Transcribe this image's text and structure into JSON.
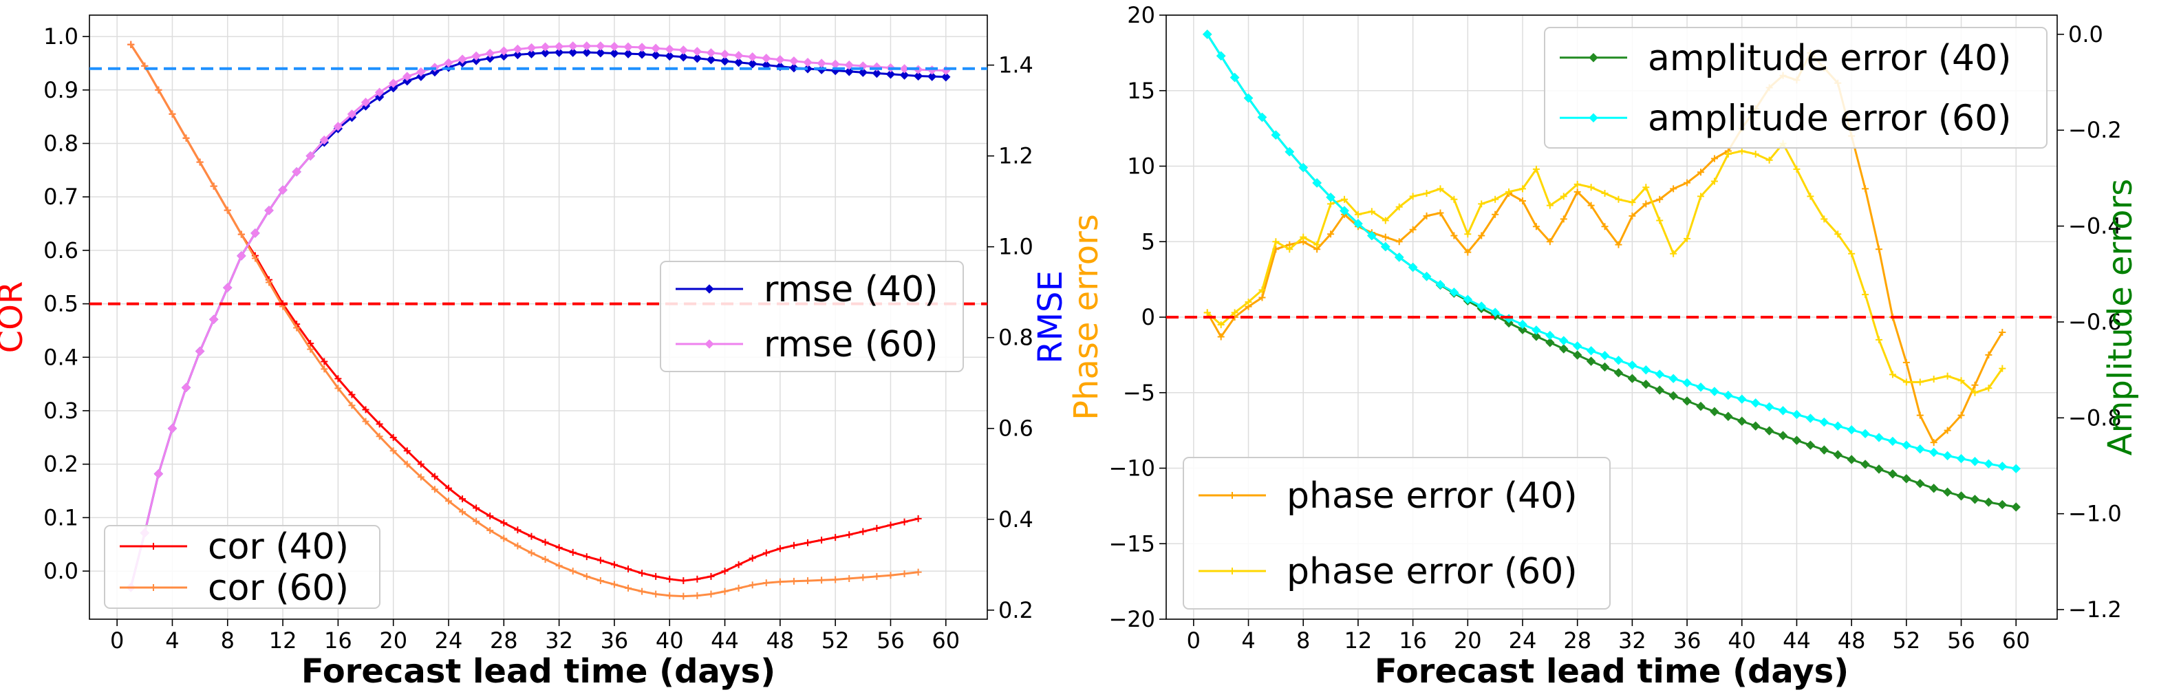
{
  "chart_data": [
    {
      "type": "line",
      "xlabel": "Forecast lead time (days)",
      "ylabel_left": "COR",
      "ylabel_right": "RMSE",
      "xlim": [
        -2,
        63
      ],
      "ylim_left": [
        -0.09,
        1.04
      ],
      "ylim_right": [
        0.18,
        1.51
      ],
      "xticks": [
        0,
        4,
        8,
        12,
        16,
        20,
        24,
        28,
        32,
        36,
        40,
        44,
        48,
        52,
        56,
        60
      ],
      "yticks_left": [
        0.0,
        0.1,
        0.2,
        0.3,
        0.4,
        0.5,
        0.6,
        0.7,
        0.8,
        0.9,
        1.0
      ],
      "yticks_right": [
        0.2,
        0.4,
        0.6,
        0.8,
        1.0,
        1.2,
        1.4
      ],
      "grid": true,
      "hlines": [
        {
          "axis": "left",
          "y": 0.5,
          "color": "#ff0000",
          "style": "dashed"
        },
        {
          "axis": "left",
          "y": 0.94,
          "color": "#1e90ff",
          "style": "dashed"
        }
      ],
      "series": [
        {
          "name": "cor (40)",
          "axis": "left",
          "color": "#ff0000",
          "marker": "plus",
          "x_start": 1,
          "values": [
            0.985,
            0.945,
            0.9,
            0.855,
            0.81,
            0.765,
            0.72,
            0.675,
            0.63,
            0.59,
            0.545,
            0.5,
            0.462,
            0.426,
            0.392,
            0.36,
            0.33,
            0.302,
            0.275,
            0.25,
            0.225,
            0.2,
            0.177,
            0.155,
            0.135,
            0.118,
            0.103,
            0.09,
            0.077,
            0.065,
            0.054,
            0.044,
            0.035,
            0.027,
            0.02,
            0.012,
            0.004,
            -0.004,
            -0.01,
            -0.015,
            -0.018,
            -0.015,
            -0.01,
            0.0,
            0.012,
            0.024,
            0.034,
            0.042,
            0.048,
            0.053,
            0.058,
            0.063,
            0.068,
            0.074,
            0.08,
            0.086,
            0.092,
            0.098
          ]
        },
        {
          "name": "cor (60)",
          "axis": "left",
          "color": "#ff8c42",
          "marker": "plus",
          "x_start": 1,
          "values": [
            0.985,
            0.945,
            0.9,
            0.855,
            0.81,
            0.765,
            0.72,
            0.675,
            0.63,
            0.585,
            0.54,
            0.495,
            0.455,
            0.415,
            0.378,
            0.342,
            0.31,
            0.28,
            0.252,
            0.225,
            0.2,
            0.176,
            0.153,
            0.131,
            0.111,
            0.093,
            0.076,
            0.061,
            0.047,
            0.034,
            0.022,
            0.01,
            0.0,
            -0.01,
            -0.018,
            -0.025,
            -0.032,
            -0.038,
            -0.043,
            -0.046,
            -0.047,
            -0.046,
            -0.043,
            -0.038,
            -0.032,
            -0.026,
            -0.022,
            -0.02,
            -0.019,
            -0.018,
            -0.017,
            -0.016,
            -0.014,
            -0.012,
            -0.01,
            -0.008,
            -0.005,
            -0.002
          ]
        },
        {
          "name": "rmse (40)",
          "axis": "right",
          "color": "#0000cd",
          "marker": "diamond",
          "x_start": 1,
          "values": [
            0.25,
            0.37,
            0.5,
            0.6,
            0.69,
            0.77,
            0.84,
            0.91,
            0.98,
            1.03,
            1.08,
            1.125,
            1.165,
            1.2,
            1.23,
            1.26,
            1.285,
            1.31,
            1.33,
            1.35,
            1.365,
            1.375,
            1.385,
            1.395,
            1.405,
            1.41,
            1.415,
            1.42,
            1.423,
            1.425,
            1.427,
            1.428,
            1.428,
            1.428,
            1.427,
            1.426,
            1.425,
            1.424,
            1.422,
            1.42,
            1.418,
            1.415,
            1.412,
            1.409,
            1.406,
            1.403,
            1.4,
            1.397,
            1.394,
            1.392,
            1.39,
            1.388,
            1.386,
            1.384,
            1.382,
            1.38,
            1.378,
            1.376,
            1.375,
            1.374
          ]
        },
        {
          "name": "rmse (60)",
          "axis": "right",
          "color": "#ee82ee",
          "marker": "diamond",
          "x_start": 1,
          "values": [
            0.25,
            0.37,
            0.5,
            0.6,
            0.69,
            0.77,
            0.84,
            0.91,
            0.98,
            1.03,
            1.08,
            1.125,
            1.165,
            1.2,
            1.235,
            1.265,
            1.292,
            1.318,
            1.34,
            1.36,
            1.375,
            1.385,
            1.395,
            1.405,
            1.413,
            1.42,
            1.426,
            1.431,
            1.435,
            1.438,
            1.44,
            1.441,
            1.442,
            1.442,
            1.442,
            1.441,
            1.44,
            1.439,
            1.437,
            1.435,
            1.433,
            1.43,
            1.427,
            1.424,
            1.421,
            1.418,
            1.415,
            1.412,
            1.409,
            1.406,
            1.404,
            1.402,
            1.4,
            1.398,
            1.396,
            1.394,
            1.392,
            1.39,
            1.389,
            1.388
          ]
        }
      ],
      "legends": [
        {
          "position": "lower-left",
          "entries": [
            "cor (40)",
            "cor (60)"
          ]
        },
        {
          "position": "center-right",
          "entries": [
            "rmse (40)",
            "rmse (60)"
          ]
        }
      ]
    },
    {
      "type": "line",
      "xlabel": "Forecast lead time (days)",
      "ylabel_left": "Phase errors",
      "ylabel_right": "Amplitude errors",
      "xlim": [
        -2,
        63
      ],
      "ylim_left": [
        -20,
        20
      ],
      "ylim_right": [
        -1.22,
        0.04
      ],
      "xticks": [
        0,
        4,
        8,
        12,
        16,
        20,
        24,
        28,
        32,
        36,
        40,
        44,
        48,
        52,
        56,
        60
      ],
      "yticks_left": [
        -20,
        -15,
        -10,
        -5,
        0,
        5,
        10,
        15,
        20
      ],
      "yticks_right": [
        -1.2,
        -1.0,
        -0.8,
        -0.6,
        -0.4,
        -0.2,
        0.0
      ],
      "grid": true,
      "hlines": [
        {
          "axis": "left",
          "y": 0,
          "color": "#ff0000",
          "style": "dashed"
        }
      ],
      "series": [
        {
          "name": "phase error (40)",
          "axis": "left",
          "color": "#ffa500",
          "marker": "plus",
          "x_start": 1,
          "values": [
            0.3,
            -1.3,
            0.0,
            0.7,
            1.3,
            4.5,
            4.8,
            5.0,
            4.5,
            5.5,
            6.8,
            6.0,
            5.6,
            5.3,
            5.0,
            5.8,
            6.7,
            6.9,
            5.4,
            4.3,
            5.4,
            6.8,
            8.2,
            7.7,
            6.0,
            5.0,
            6.5,
            8.3,
            7.4,
            6.0,
            4.8,
            6.7,
            7.5,
            7.8,
            8.5,
            8.9,
            9.6,
            10.5,
            11.0,
            12.5,
            13.8,
            15.2,
            16.0,
            15.7,
            17.5,
            16.5,
            15.5,
            12.0,
            8.5,
            4.5,
            0.0,
            -3.0,
            -6.5,
            -8.3,
            -7.5,
            -6.5,
            -4.5,
            -2.5,
            -1.0
          ]
        },
        {
          "name": "phase error (60)",
          "axis": "left",
          "color": "#ffd700",
          "marker": "plus",
          "x_start": 1,
          "values": [
            0.3,
            -0.5,
            0.3,
            1.0,
            1.8,
            5.0,
            4.5,
            5.3,
            4.8,
            7.5,
            7.8,
            6.8,
            7.0,
            6.4,
            7.3,
            8.0,
            8.2,
            8.5,
            7.8,
            5.5,
            7.5,
            7.8,
            8.3,
            8.5,
            9.8,
            7.4,
            8.0,
            8.8,
            8.6,
            8.2,
            7.8,
            7.6,
            8.6,
            6.4,
            4.2,
            5.2,
            8.0,
            9.0,
            10.8,
            11.0,
            10.8,
            10.4,
            11.5,
            9.8,
            8.0,
            6.5,
            5.5,
            4.2,
            1.5,
            -1.5,
            -3.8,
            -4.3,
            -4.3,
            -4.1,
            -3.9,
            -4.2,
            -5.0,
            -4.7,
            -3.4
          ]
        },
        {
          "name": "amplitude error (40)",
          "axis": "right",
          "color": "#228b22",
          "marker": "diamond",
          "x_start": 1,
          "values": [
            0.0,
            -0.045,
            -0.09,
            -0.133,
            -0.173,
            -0.21,
            -0.245,
            -0.278,
            -0.31,
            -0.34,
            -0.368,
            -0.395,
            -0.42,
            -0.443,
            -0.465,
            -0.486,
            -0.505,
            -0.523,
            -0.54,
            -0.556,
            -0.572,
            -0.587,
            -0.602,
            -0.616,
            -0.63,
            -0.643,
            -0.656,
            -0.669,
            -0.682,
            -0.694,
            -0.706,
            -0.718,
            -0.73,
            -0.742,
            -0.754,
            -0.765,
            -0.776,
            -0.787,
            -0.797,
            -0.807,
            -0.817,
            -0.827,
            -0.837,
            -0.847,
            -0.857,
            -0.867,
            -0.877,
            -0.887,
            -0.897,
            -0.907,
            -0.917,
            -0.927,
            -0.937,
            -0.947,
            -0.955,
            -0.963,
            -0.97,
            -0.976,
            -0.981,
            -0.986
          ]
        },
        {
          "name": "amplitude error (60)",
          "axis": "right",
          "color": "#00ffff",
          "marker": "diamond",
          "x_start": 1,
          "values": [
            0.0,
            -0.045,
            -0.09,
            -0.133,
            -0.173,
            -0.21,
            -0.245,
            -0.278,
            -0.31,
            -0.34,
            -0.368,
            -0.395,
            -0.42,
            -0.443,
            -0.465,
            -0.486,
            -0.505,
            -0.522,
            -0.538,
            -0.553,
            -0.567,
            -0.58,
            -0.593,
            -0.605,
            -0.617,
            -0.628,
            -0.639,
            -0.65,
            -0.66,
            -0.67,
            -0.68,
            -0.69,
            -0.7,
            -0.709,
            -0.718,
            -0.727,
            -0.736,
            -0.745,
            -0.753,
            -0.761,
            -0.769,
            -0.777,
            -0.785,
            -0.793,
            -0.801,
            -0.809,
            -0.817,
            -0.825,
            -0.833,
            -0.841,
            -0.849,
            -0.857,
            -0.865,
            -0.872,
            -0.879,
            -0.885,
            -0.891,
            -0.896,
            -0.901,
            -0.906
          ]
        }
      ],
      "legends": [
        {
          "position": "upper-right",
          "entries": [
            "amplitude error (40)",
            "amplitude error (60)"
          ]
        },
        {
          "position": "lower-left",
          "entries": [
            "phase error (40)",
            "phase error (60)"
          ]
        }
      ]
    }
  ]
}
